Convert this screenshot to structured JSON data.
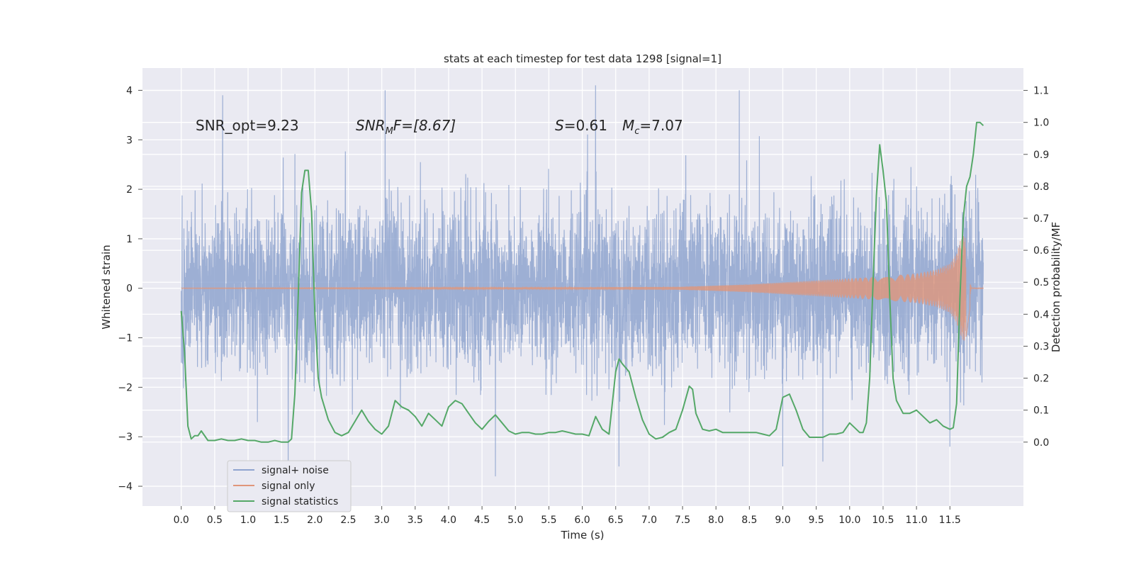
{
  "chart_data": {
    "type": "line",
    "title": "stats at each timestep for test data 1298 [signal=1]",
    "xlabel": "Time (s)",
    "ylabel": "Whitened strain",
    "ylabel_right": "Detection probability/MF",
    "xlim": [
      -0.58,
      12.6
    ],
    "ylim": [
      -4.4,
      4.45
    ],
    "ylim_right": [
      -0.2,
      1.17
    ],
    "x_ticks": [
      "0.0",
      "0.5",
      "1.0",
      "1.5",
      "2.0",
      "2.5",
      "3.0",
      "3.5",
      "4.0",
      "4.5",
      "5.0",
      "5.5",
      "6.0",
      "6.5",
      "7.0",
      "7.5",
      "8.0",
      "8.5",
      "9.0",
      "9.5",
      "10.0",
      "10.5",
      "11.0",
      "11.5"
    ],
    "y_ticks": [
      "4",
      "3",
      "2",
      "1",
      "0",
      "−1",
      "−2",
      "−3",
      "−4"
    ],
    "y_ticks_right": [
      "1.1",
      "1.0",
      "0.9",
      "0.8",
      "0.7",
      "0.6",
      "0.5",
      "0.4",
      "0.3",
      "0.2",
      "0.1",
      "0.0"
    ],
    "grid": true,
    "legend_position": "lower-left",
    "annotations": {
      "snr_opt": "SNR_opt=9.23",
      "snr_mf_base": "SNR",
      "snr_mf_sub": "M",
      "snr_mf_rest": "F=[8.67]",
      "s_italic": "S",
      "s_rest": "=0.61",
      "mc_base": "M",
      "mc_sub": "c",
      "mc_rest": "=7.07"
    },
    "series": [
      {
        "name": "signal+ noise",
        "color": "#8fa4cf",
        "axis": "left",
        "x_range": [
          0.0,
          12.0
        ],
        "envelope_p95": 1.3,
        "peaks": [
          [
            0.62,
            3.9
          ],
          [
            3.05,
            4.0
          ],
          [
            6.2,
            4.1
          ],
          [
            8.35,
            4.0
          ],
          [
            1.6,
            -3.9
          ],
          [
            4.7,
            -3.8
          ],
          [
            6.55,
            -3.6
          ],
          [
            9.0,
            -3.6
          ],
          [
            9.6,
            -3.5
          ],
          [
            11.5,
            -3.2
          ]
        ]
      },
      {
        "name": "signal only",
        "color": "#e0967a",
        "axis": "left",
        "x_range": [
          0.0,
          12.0
        ],
        "envelope": [
          [
            0.0,
            0.01
          ],
          [
            6.0,
            0.02
          ],
          [
            7.5,
            0.03
          ],
          [
            8.5,
            0.08
          ],
          [
            9.5,
            0.16
          ],
          [
            10.5,
            0.24
          ],
          [
            11.0,
            0.3
          ],
          [
            11.3,
            0.38
          ],
          [
            11.5,
            0.5
          ],
          [
            11.6,
            0.7
          ],
          [
            11.65,
            0.95
          ],
          [
            11.72,
            1.1
          ],
          [
            11.78,
            0.3
          ],
          [
            11.82,
            0.02
          ]
        ]
      },
      {
        "name": "signal statistics",
        "color": "#55a868",
        "axis": "right",
        "x": [
          0.0,
          0.05,
          0.1,
          0.15,
          0.2,
          0.25,
          0.3,
          0.4,
          0.5,
          0.6,
          0.7,
          0.8,
          0.9,
          1.0,
          1.1,
          1.2,
          1.3,
          1.4,
          1.5,
          1.6,
          1.65,
          1.7,
          1.75,
          1.8,
          1.85,
          1.9,
          1.95,
          2.0,
          2.05,
          2.1,
          2.2,
          2.3,
          2.4,
          2.5,
          2.6,
          2.7,
          2.8,
          2.9,
          3.0,
          3.1,
          3.2,
          3.3,
          3.4,
          3.5,
          3.6,
          3.7,
          3.8,
          3.9,
          4.0,
          4.1,
          4.2,
          4.3,
          4.4,
          4.5,
          4.6,
          4.7,
          4.8,
          4.9,
          5.0,
          5.1,
          5.2,
          5.3,
          5.4,
          5.5,
          5.6,
          5.7,
          5.8,
          5.9,
          6.0,
          6.1,
          6.2,
          6.3,
          6.4,
          6.5,
          6.55,
          6.6,
          6.7,
          6.8,
          6.9,
          7.0,
          7.1,
          7.2,
          7.3,
          7.4,
          7.5,
          7.6,
          7.65,
          7.7,
          7.8,
          7.9,
          8.0,
          8.1,
          8.2,
          8.3,
          8.4,
          8.5,
          8.6,
          8.7,
          8.8,
          8.9,
          9.0,
          9.1,
          9.2,
          9.3,
          9.4,
          9.5,
          9.6,
          9.7,
          9.8,
          9.9,
          10.0,
          10.1,
          10.15,
          10.2,
          10.25,
          10.3,
          10.35,
          10.4,
          10.45,
          10.5,
          10.55,
          10.6,
          10.65,
          10.7,
          10.8,
          10.9,
          11.0,
          11.1,
          11.2,
          11.3,
          11.4,
          11.5,
          11.55,
          11.6,
          11.65,
          11.7,
          11.75,
          11.8,
          11.85,
          11.9,
          11.95,
          12.0
        ],
        "values": [
          0.41,
          0.28,
          0.05,
          0.01,
          0.02,
          0.02,
          0.035,
          0.005,
          0.005,
          0.01,
          0.005,
          0.005,
          0.01,
          0.005,
          0.005,
          0.0,
          0.0,
          0.005,
          0.0,
          0.0,
          0.01,
          0.15,
          0.45,
          0.78,
          0.85,
          0.85,
          0.72,
          0.4,
          0.2,
          0.14,
          0.07,
          0.03,
          0.02,
          0.03,
          0.065,
          0.1,
          0.065,
          0.04,
          0.025,
          0.05,
          0.13,
          0.11,
          0.1,
          0.08,
          0.05,
          0.09,
          0.07,
          0.05,
          0.11,
          0.13,
          0.12,
          0.09,
          0.06,
          0.04,
          0.065,
          0.085,
          0.06,
          0.035,
          0.025,
          0.03,
          0.03,
          0.025,
          0.025,
          0.03,
          0.03,
          0.035,
          0.03,
          0.025,
          0.025,
          0.02,
          0.08,
          0.04,
          0.025,
          0.22,
          0.26,
          0.245,
          0.22,
          0.14,
          0.07,
          0.025,
          0.01,
          0.015,
          0.03,
          0.04,
          0.1,
          0.175,
          0.165,
          0.09,
          0.04,
          0.035,
          0.04,
          0.03,
          0.03,
          0.03,
          0.03,
          0.03,
          0.03,
          0.025,
          0.02,
          0.04,
          0.14,
          0.15,
          0.1,
          0.04,
          0.015,
          0.015,
          0.015,
          0.025,
          0.025,
          0.03,
          0.06,
          0.04,
          0.03,
          0.03,
          0.06,
          0.2,
          0.5,
          0.77,
          0.93,
          0.85,
          0.75,
          0.45,
          0.2,
          0.13,
          0.09,
          0.09,
          0.1,
          0.08,
          0.06,
          0.07,
          0.05,
          0.04,
          0.045,
          0.12,
          0.45,
          0.7,
          0.8,
          0.83,
          0.9,
          1.0,
          1.0,
          0.99
        ]
      }
    ]
  }
}
